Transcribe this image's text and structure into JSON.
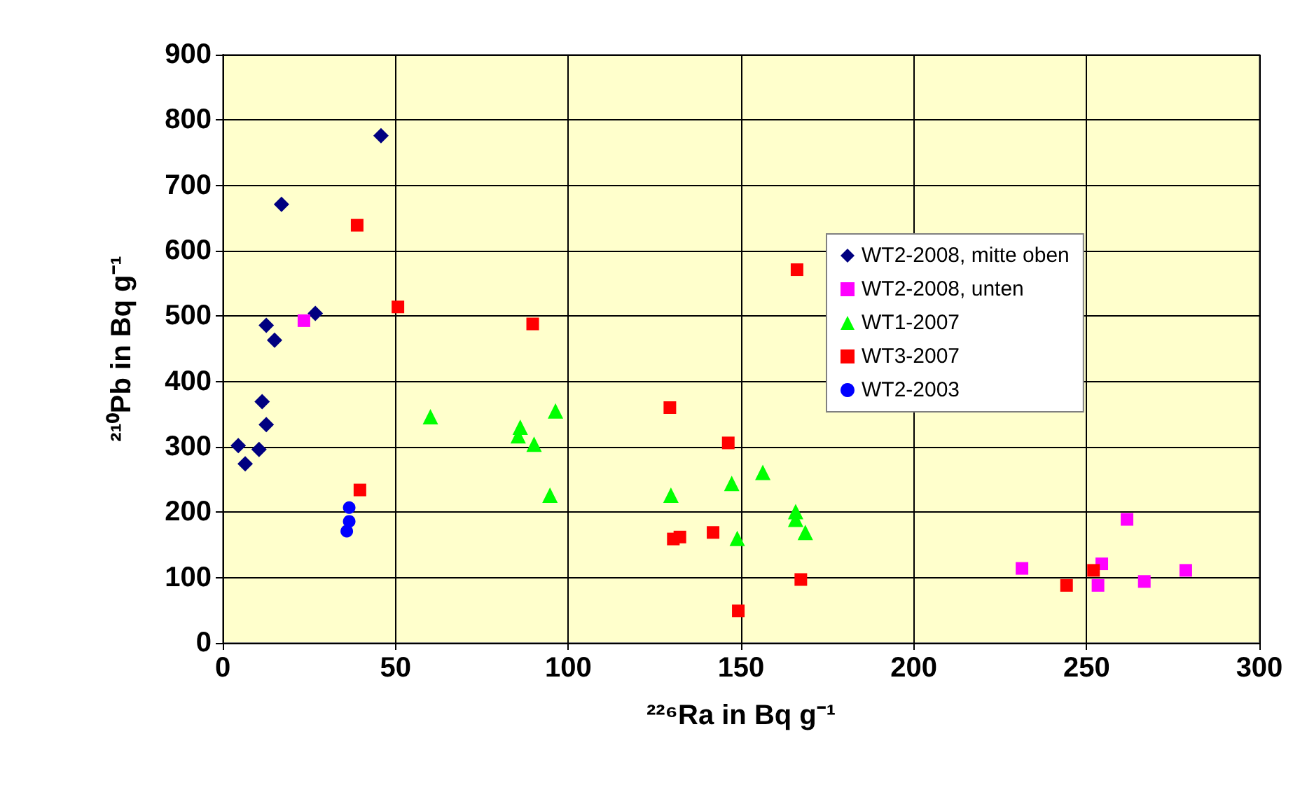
{
  "chart_data": {
    "type": "scatter",
    "xlabel": "²²⁶Ra in Bq g⁻¹",
    "ylabel": "²¹⁰Pb in Bq g⁻¹",
    "xlim": [
      0,
      300
    ],
    "xticks": [
      0,
      50,
      100,
      150,
      200,
      250,
      300
    ],
    "ylim": [
      0,
      900
    ],
    "yticks": [
      0,
      100,
      200,
      300,
      400,
      500,
      600,
      700,
      800,
      900
    ],
    "grid": true,
    "legend": "top right",
    "series": [
      {
        "name": "WT2-2008, mitte oben",
        "color": "#000080",
        "marker": "diamond",
        "x": [
          4.5,
          6.5,
          10.5,
          11.4,
          12.6,
          12.6,
          15,
          17,
          26.8,
          45.8
        ],
        "values": [
          302,
          274,
          296,
          369,
          334,
          486,
          463,
          671,
          504,
          776
        ]
      },
      {
        "name": "WT2-2008, unten",
        "color": "#ff00ff",
        "marker": "square",
        "x": [
          23.5,
          231.3,
          261.7,
          254.4,
          253.3,
          266.7,
          278.7
        ],
        "values": [
          493,
          114,
          189,
          121,
          88,
          94,
          111
        ]
      },
      {
        "name": "WT1-2007",
        "color": "#00ff00",
        "marker": "triangle",
        "x": [
          60.1,
          86.1,
          85.5,
          90.1,
          96.3,
          94.7,
          129.7,
          147.3,
          156.3,
          165.8,
          165.8,
          168.6,
          148.9
        ],
        "values": [
          346,
          330,
          317,
          304,
          355,
          226,
          226,
          244,
          261,
          201,
          189,
          169,
          160
        ]
      },
      {
        "name": "WT3-2007",
        "color": "#ff0000",
        "marker": "square",
        "x": [
          38.9,
          50.7,
          39.7,
          89.7,
          129.4,
          146.3,
          130.4,
          132.3,
          141.9,
          149.2,
          167.3,
          166.2,
          244.2,
          252
        ],
        "values": [
          639,
          514,
          234,
          488,
          360,
          306,
          159,
          162,
          169,
          49,
          97,
          571,
          88,
          111
        ]
      },
      {
        "name": "WT2-2003",
        "color": "#0000ff",
        "marker": "circle",
        "x": [
          36.6,
          36.6,
          35.9
        ],
        "values": [
          207,
          186,
          171
        ]
      }
    ]
  }
}
